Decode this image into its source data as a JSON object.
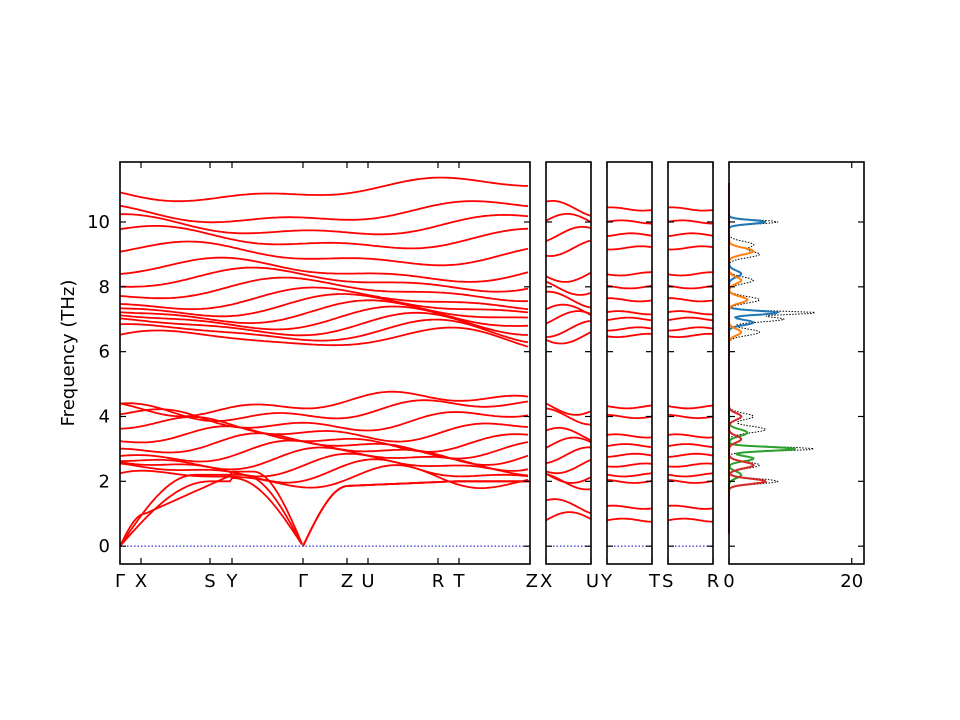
{
  "chart_data": {
    "type": "line",
    "ylabel": "Frequency (THz)",
    "ylim": [
      -0.55,
      11.85
    ],
    "yticks": [
      "0",
      "2",
      "4",
      "6",
      "8",
      "10"
    ],
    "band_path": {
      "segments": [
        {
          "labels": [
            "Γ",
            "X",
            "S",
            "Y",
            "Γ",
            "Z",
            "U",
            "R",
            "T",
            "Z"
          ]
        },
        {
          "labels": [
            "X",
            "U"
          ]
        },
        {
          "labels": [
            "Y",
            "T"
          ]
        },
        {
          "labels": [
            "S",
            "R"
          ]
        }
      ],
      "tick_text": [
        "Γ",
        "X",
        "S",
        "Y",
        "Γ",
        "Z",
        "U",
        "R",
        "T",
        "Z",
        "X",
        "U",
        "Y",
        "T",
        "S",
        "R"
      ]
    },
    "dos": {
      "xticks": [
        "0",
        "20"
      ],
      "xlim": [
        0,
        22
      ],
      "colors": {
        "total": "#000000",
        "p1": "#1f77b4",
        "p2": "#ff7f0e",
        "p3": "#2ca02c",
        "p4": "#d62728"
      }
    },
    "bands_color": "#ff0000",
    "zero_line_color": "#0000cc"
  }
}
